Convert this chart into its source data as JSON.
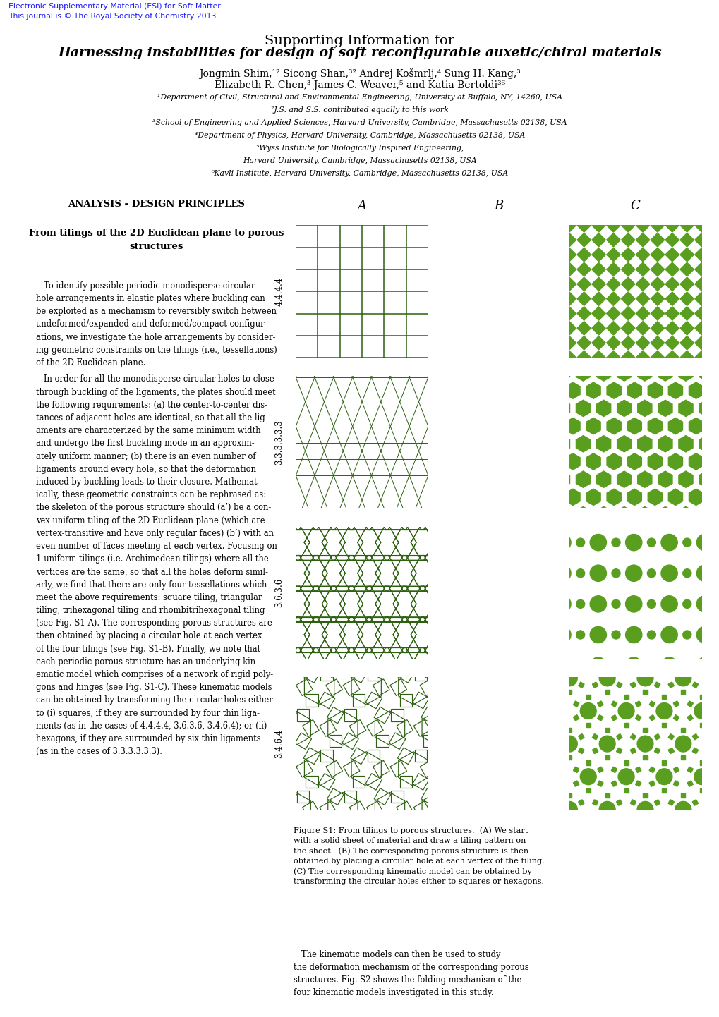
{
  "title_line1": "Supporting Information for",
  "title_line2": "Harnessing instabilities for design of soft reconfigurable auxetic/chiral materials",
  "authors": "Jongmin Shim,¹² Sicong Shan,³² Andrej Košmrlj,⁴ Sung H. Kang,³",
  "authors2": "Elizabeth R. Chen,³ James C. Weaver,⁵ and Katia Bertoldi³⁶",
  "affil1": "¹Department of Civil, Structural and Environmental Engineering, University at Buffalo, NY, 14260, USA",
  "affil2": "²J.S. and S.S. contributed equally to this work",
  "affil3": "³School of Engineering and Applied Sciences, Harvard University, Cambridge, Massachusetts 02138, USA",
  "affil4": "⁴Department of Physics, Harvard University, Cambridge, Massachusetts 02138, USA",
  "affil5": "⁵Wyss Institute for Biologically Inspired Engineering,",
  "affil5b": "Harvard University, Cambridge, Massachusetts 02138, USA",
  "affil6": "⁶Kavli Institute, Harvard University, Cambridge, Massachusetts 02138, USA",
  "esi_line1": "Electronic Supplementary Material (ESI) for Soft Matter",
  "esi_line2": "This journal is © The Royal Society of Chemistry 2013",
  "section_title": "ANALYSIS - DESIGN PRINCIPLES",
  "subsection_title": "From tilings of the 2D Euclidean plane to porous\nstructures",
  "body_para1": "   To identify possible periodic monodisperse circular\nhole arrangements in elastic plates where buckling can\nbe exploited as a mechanism to reversibly switch between\nundeformed/expanded and deformed/compact configur-\nations, we investigate the hole arrangements by consider-\ning geometric constraints on the tilings (i.e., tessellations)\nof the 2D Euclidean plane.",
  "body_para2": "   In order for all the monodisperse circular holes to close\nthrough buckling of the ligaments, the plates should meet\nthe following requirements: (a) the center-to-center dis-\ntances of adjacent holes are identical, so that all the lig-\naments are characterized by the same minimum width\nand undergo the first buckling mode in an approxim-\nately uniform manner; (b) there is an even number of\nligaments around every hole, so that the deformation\ninduced by buckling leads to their closure. Mathemat-\nically, these geometric constraints can be rephrased as:\nthe skeleton of the porous structure should (a’) be a con-\nvex uniform tiling of the 2D Euclidean plane (which are\nvertex-transitive and have only regular faces) (b’) with an\neven number of faces meeting at each vertex. Focusing on\n1-uniform tilings (i.e. Archimedean tilings) where all the\nvertices are the same, so that all the holes deform simil-\narly, we find that there are only four tessellations which\nmeet the above requirements: square tiling, triangular\ntiling, trihexagonal tiling and rhombitrihexagonal tiling\n(see Fig. S1-A). The corresponding porous structures are\nthen obtained by placing a circular hole at each vertex\nof the four tilings (see Fig. S1-B). Finally, we note that\neach periodic porous structure has an underlying kin-\nematic model which comprises of a network of rigid poly-\ngons and hinges (see Fig. S1-C). These kinematic models\ncan be obtained by transforming the circular holes either\nto (i) squares, if they are surrounded by four thin liga-\nments (as in the cases of 4.4.4.4, 3.6.3.6, 3.4.6.4); or (ii)\nhexagons, if they are surrounded by six thin ligaments\n(as in the cases of 3.3.3.3.3.3).",
  "body_text2": "   The kinematic models can then be used to study\nthe deformation mechanism of the corresponding porous\nstructures. Fig. S2 shows the folding mechanism of the\nfour kinematic models investigated in this study.",
  "caption": "Figure S1: From tilings to porous structures.  (A) We start\nwith a solid sheet of material and draw a tiling pattern on\nthe sheet.  (B) The corresponding porous structure is then\nobtained by placing a circular hole at each vertex of the tiling.\n(C) The corresponding kinematic model can be obtained by\ntransforming the circular holes either to squares or hexagons.",
  "row_labels": [
    "4.4.4.4",
    "3.3.3.3.3.3",
    "3.6.3.6",
    "3.4.6.4"
  ],
  "col_labels": [
    "A",
    "B",
    "C"
  ],
  "GREEN": "#5a9e20",
  "DARK_GREEN": "#2d6010",
  "LIGHT_BG": "#c8e090",
  "white": "#ffffff",
  "black": "#000000",
  "blue_esi": "#1a1aff",
  "background": "#ffffff"
}
